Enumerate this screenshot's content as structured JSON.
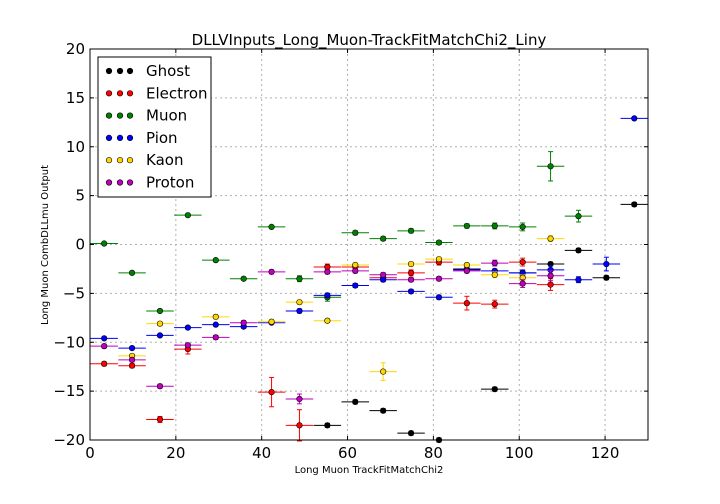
{
  "chart_data": {
    "type": "scatter",
    "title": "DLLVInputs_Long_Muon-TrackFitMatchChi2_Liny",
    "xlabel": "Long Muon TrackFitMatchChi2",
    "ylabel": "Long Muon CombDLLmu Output",
    "xlim": [
      0,
      130
    ],
    "ylim": [
      -20,
      20
    ],
    "xticks": [
      "0",
      "20",
      "40",
      "60",
      "80",
      "100",
      "120"
    ],
    "yticks": [
      "20",
      "15",
      "10",
      "5",
      "0",
      "−5",
      "−10",
      "−15",
      "−20"
    ],
    "grid": true,
    "legend_position": "top-left",
    "series": [
      {
        "name": "Ghost",
        "color": "#000000",
        "points": [
          {
            "x": 68.3,
            "y": -17.0,
            "xerr": 3.2,
            "yerr": 0.2
          },
          {
            "x": 74.8,
            "y": -19.3,
            "xerr": 3.2,
            "yerr": 0.2
          },
          {
            "x": 81.3,
            "y": -20.0,
            "xerr": 3.2,
            "yerr": 0.2
          },
          {
            "x": 61.8,
            "y": -16.1,
            "xerr": 3.2,
            "yerr": 0.2
          },
          {
            "x": 55.3,
            "y": -18.5,
            "xerr": 3.2,
            "yerr": 0.2
          },
          {
            "x": 94.3,
            "y": -14.8,
            "xerr": 3.2,
            "yerr": 0.2
          },
          {
            "x": 113.8,
            "y": -0.6,
            "xerr": 3.2,
            "yerr": 0.2
          },
          {
            "x": 120.3,
            "y": -3.4,
            "xerr": 3.2,
            "yerr": 0.2
          },
          {
            "x": 126.8,
            "y": 4.1,
            "xerr": 3.2,
            "yerr": 0.2
          },
          {
            "x": 107.3,
            "y": -2.0,
            "xerr": 3.2,
            "yerr": 0.2
          },
          {
            "x": 100.8,
            "y": -2.9,
            "xerr": 3.2,
            "yerr": 0.2
          },
          {
            "x": 87.8,
            "y": -2.5,
            "xerr": 3.2,
            "yerr": 0.2
          }
        ]
      },
      {
        "name": "Electron",
        "color": "#ff0000",
        "points": [
          {
            "x": 3.3,
            "y": -12.2,
            "xerr": 3.2,
            "yerr": 0.2
          },
          {
            "x": 9.8,
            "y": -12.4,
            "xerr": 3.2,
            "yerr": 0.2
          },
          {
            "x": 16.3,
            "y": -17.9,
            "xerr": 3.2,
            "yerr": 0.3
          },
          {
            "x": 22.8,
            "y": -10.7,
            "xerr": 3.2,
            "yerr": 0.5
          },
          {
            "x": 42.3,
            "y": -15.1,
            "xerr": 3.2,
            "yerr": 1.5
          },
          {
            "x": 48.8,
            "y": -18.5,
            "xerr": 3.2,
            "yerr": 1.6
          },
          {
            "x": 55.3,
            "y": -2.3,
            "xerr": 3.2,
            "yerr": 0.3
          },
          {
            "x": 61.8,
            "y": -2.3,
            "xerr": 3.2,
            "yerr": 0.3
          },
          {
            "x": 68.3,
            "y": -3.4,
            "xerr": 3.2,
            "yerr": 0.3
          },
          {
            "x": 74.8,
            "y": -2.9,
            "xerr": 3.2,
            "yerr": 0.3
          },
          {
            "x": 81.3,
            "y": -1.8,
            "xerr": 3.2,
            "yerr": 0.3
          },
          {
            "x": 87.8,
            "y": -6.0,
            "xerr": 3.2,
            "yerr": 0.7
          },
          {
            "x": 94.3,
            "y": -6.1,
            "xerr": 3.2,
            "yerr": 0.4
          },
          {
            "x": 100.8,
            "y": -1.8,
            "xerr": 3.2,
            "yerr": 0.4
          },
          {
            "x": 107.3,
            "y": -4.1,
            "xerr": 3.2,
            "yerr": 0.6
          }
        ]
      },
      {
        "name": "Muon",
        "color": "#008000",
        "points": [
          {
            "x": 3.3,
            "y": 0.1,
            "xerr": 3.2,
            "yerr": 0.1
          },
          {
            "x": 9.8,
            "y": -2.9,
            "xerr": 3.2,
            "yerr": 0.1
          },
          {
            "x": 16.3,
            "y": -6.8,
            "xerr": 3.2,
            "yerr": 0.1
          },
          {
            "x": 22.8,
            "y": 3.0,
            "xerr": 3.2,
            "yerr": 0.1
          },
          {
            "x": 29.3,
            "y": -1.6,
            "xerr": 3.2,
            "yerr": 0.1
          },
          {
            "x": 35.8,
            "y": -3.5,
            "xerr": 3.2,
            "yerr": 0.1
          },
          {
            "x": 42.3,
            "y": 1.8,
            "xerr": 3.2,
            "yerr": 0.1
          },
          {
            "x": 48.8,
            "y": -3.5,
            "xerr": 3.2,
            "yerr": 0.3
          },
          {
            "x": 55.3,
            "y": -5.4,
            "xerr": 3.2,
            "yerr": 0.4
          },
          {
            "x": 61.8,
            "y": 1.2,
            "xerr": 3.2,
            "yerr": 0.2
          },
          {
            "x": 68.3,
            "y": 0.6,
            "xerr": 3.2,
            "yerr": 0.2
          },
          {
            "x": 74.8,
            "y": 1.4,
            "xerr": 3.2,
            "yerr": 0.2
          },
          {
            "x": 81.3,
            "y": 0.2,
            "xerr": 3.2,
            "yerr": 0.2
          },
          {
            "x": 87.8,
            "y": 1.9,
            "xerr": 3.2,
            "yerr": 0.2
          },
          {
            "x": 94.3,
            "y": 1.9,
            "xerr": 3.2,
            "yerr": 0.3
          },
          {
            "x": 100.8,
            "y": 1.8,
            "xerr": 3.2,
            "yerr": 0.4
          },
          {
            "x": 107.3,
            "y": 8.0,
            "xerr": 3.2,
            "yerr": 1.5
          },
          {
            "x": 113.8,
            "y": 2.9,
            "xerr": 3.2,
            "yerr": 0.6
          }
        ]
      },
      {
        "name": "Pion",
        "color": "#0000ff",
        "points": [
          {
            "x": 3.3,
            "y": -9.6,
            "xerr": 3.2,
            "yerr": 0.1
          },
          {
            "x": 9.8,
            "y": -10.6,
            "xerr": 3.2,
            "yerr": 0.1
          },
          {
            "x": 16.3,
            "y": -9.3,
            "xerr": 3.2,
            "yerr": 0.1
          },
          {
            "x": 22.8,
            "y": -8.5,
            "xerr": 3.2,
            "yerr": 0.1
          },
          {
            "x": 29.3,
            "y": -8.2,
            "xerr": 3.2,
            "yerr": 0.1
          },
          {
            "x": 35.8,
            "y": -8.4,
            "xerr": 3.2,
            "yerr": 0.1
          },
          {
            "x": 42.3,
            "y": -8.0,
            "xerr": 3.2,
            "yerr": 0.1
          },
          {
            "x": 48.8,
            "y": -6.8,
            "xerr": 3.2,
            "yerr": 0.2
          },
          {
            "x": 55.3,
            "y": -5.2,
            "xerr": 3.2,
            "yerr": 0.2
          },
          {
            "x": 61.8,
            "y": -4.2,
            "xerr": 3.2,
            "yerr": 0.2
          },
          {
            "x": 68.3,
            "y": -3.6,
            "xerr": 3.2,
            "yerr": 0.2
          },
          {
            "x": 74.8,
            "y": -4.8,
            "xerr": 3.2,
            "yerr": 0.2
          },
          {
            "x": 81.3,
            "y": -5.4,
            "xerr": 3.2,
            "yerr": 0.2
          },
          {
            "x": 87.8,
            "y": -2.6,
            "xerr": 3.2,
            "yerr": 0.2
          },
          {
            "x": 94.3,
            "y": -2.7,
            "xerr": 3.2,
            "yerr": 0.2
          },
          {
            "x": 100.8,
            "y": -2.9,
            "xerr": 3.2,
            "yerr": 0.3
          },
          {
            "x": 107.3,
            "y": -2.6,
            "xerr": 3.2,
            "yerr": 0.4
          },
          {
            "x": 113.8,
            "y": -3.6,
            "xerr": 3.2,
            "yerr": 0.3
          },
          {
            "x": 120.3,
            "y": -2.0,
            "xerr": 3.2,
            "yerr": 0.7
          },
          {
            "x": 126.8,
            "y": 12.9,
            "xerr": 3.2,
            "yerr": 0.1
          }
        ]
      },
      {
        "name": "Kaon",
        "color": "#ffd700",
        "points": [
          {
            "x": 9.8,
            "y": -11.4,
            "xerr": 3.2,
            "yerr": 0.2
          },
          {
            "x": 16.3,
            "y": -8.1,
            "xerr": 3.2,
            "yerr": 0.2
          },
          {
            "x": 29.3,
            "y": -7.4,
            "xerr": 3.2,
            "yerr": 0.2
          },
          {
            "x": 42.3,
            "y": -7.9,
            "xerr": 3.2,
            "yerr": 0.2
          },
          {
            "x": 48.8,
            "y": -5.9,
            "xerr": 3.2,
            "yerr": 0.2
          },
          {
            "x": 55.3,
            "y": -7.8,
            "xerr": 3.2,
            "yerr": 0.2
          },
          {
            "x": 61.8,
            "y": -2.1,
            "xerr": 3.2,
            "yerr": 0.2
          },
          {
            "x": 68.3,
            "y": -13.0,
            "xerr": 3.2,
            "yerr": 0.9
          },
          {
            "x": 74.8,
            "y": -2.0,
            "xerr": 3.2,
            "yerr": 0.2
          },
          {
            "x": 81.3,
            "y": -1.5,
            "xerr": 3.2,
            "yerr": 0.2
          },
          {
            "x": 87.8,
            "y": -2.1,
            "xerr": 3.2,
            "yerr": 0.2
          },
          {
            "x": 94.3,
            "y": -3.1,
            "xerr": 3.2,
            "yerr": 0.3
          },
          {
            "x": 100.8,
            "y": -3.4,
            "xerr": 3.2,
            "yerr": 0.3
          },
          {
            "x": 107.3,
            "y": 0.6,
            "xerr": 3.2,
            "yerr": 0.3
          }
        ]
      },
      {
        "name": "Proton",
        "color": "#bf00bf",
        "points": [
          {
            "x": 3.3,
            "y": -10.4,
            "xerr": 3.2,
            "yerr": 0.2
          },
          {
            "x": 9.8,
            "y": -11.8,
            "xerr": 3.2,
            "yerr": 0.2
          },
          {
            "x": 16.3,
            "y": -14.5,
            "xerr": 3.2,
            "yerr": 0.2
          },
          {
            "x": 22.8,
            "y": -10.3,
            "xerr": 3.2,
            "yerr": 0.2
          },
          {
            "x": 29.3,
            "y": -9.5,
            "xerr": 3.2,
            "yerr": 0.2
          },
          {
            "x": 35.8,
            "y": -8.0,
            "xerr": 3.2,
            "yerr": 0.2
          },
          {
            "x": 42.3,
            "y": -2.8,
            "xerr": 3.2,
            "yerr": 0.2
          },
          {
            "x": 48.8,
            "y": -15.8,
            "xerr": 3.2,
            "yerr": 0.5
          },
          {
            "x": 55.3,
            "y": -2.8,
            "xerr": 3.2,
            "yerr": 0.2
          },
          {
            "x": 61.8,
            "y": -2.7,
            "xerr": 3.2,
            "yerr": 0.2
          },
          {
            "x": 68.3,
            "y": -3.1,
            "xerr": 3.2,
            "yerr": 0.2
          },
          {
            "x": 74.8,
            "y": -3.6,
            "xerr": 3.2,
            "yerr": 0.2
          },
          {
            "x": 81.3,
            "y": -3.5,
            "xerr": 3.2,
            "yerr": 0.2
          },
          {
            "x": 87.8,
            "y": -2.7,
            "xerr": 3.2,
            "yerr": 0.2
          },
          {
            "x": 94.3,
            "y": -1.9,
            "xerr": 3.2,
            "yerr": 0.3
          },
          {
            "x": 100.8,
            "y": -4.0,
            "xerr": 3.2,
            "yerr": 0.4
          },
          {
            "x": 107.3,
            "y": -3.2,
            "xerr": 3.2,
            "yerr": 0.5
          }
        ]
      }
    ]
  }
}
